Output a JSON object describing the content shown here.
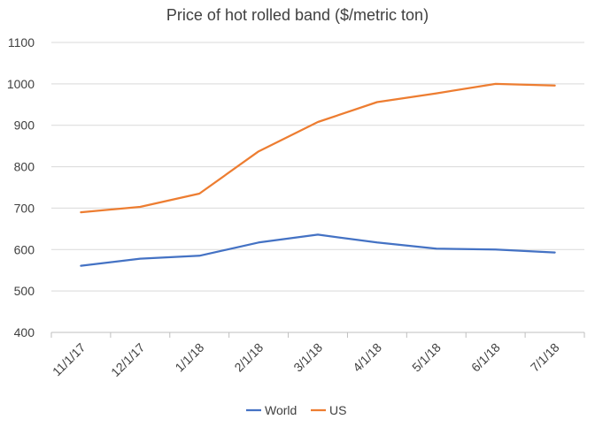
{
  "chart_data": {
    "type": "line",
    "title": "Price of hot rolled band ($/metric ton)",
    "xlabel": "",
    "ylabel": "",
    "categories": [
      "11/1/17",
      "12/1/17",
      "1/1/18",
      "2/1/18",
      "3/1/18",
      "4/1/18",
      "5/1/18",
      "6/1/18",
      "7/1/18"
    ],
    "yticks": [
      "400",
      "500",
      "600",
      "700",
      "800",
      "900",
      "1000",
      "1100"
    ],
    "ylim": [
      400,
      1100
    ],
    "grid": true,
    "legend_position": "bottom",
    "series": [
      {
        "name": "World",
        "color": "#4472C4",
        "values": [
          561,
          578,
          585,
          617,
          636,
          617,
          602,
          600,
          593
        ]
      },
      {
        "name": "US",
        "color": "#ED7D31",
        "values": [
          690,
          703,
          735,
          837,
          908,
          956,
          977,
          1000,
          996
        ]
      }
    ]
  }
}
